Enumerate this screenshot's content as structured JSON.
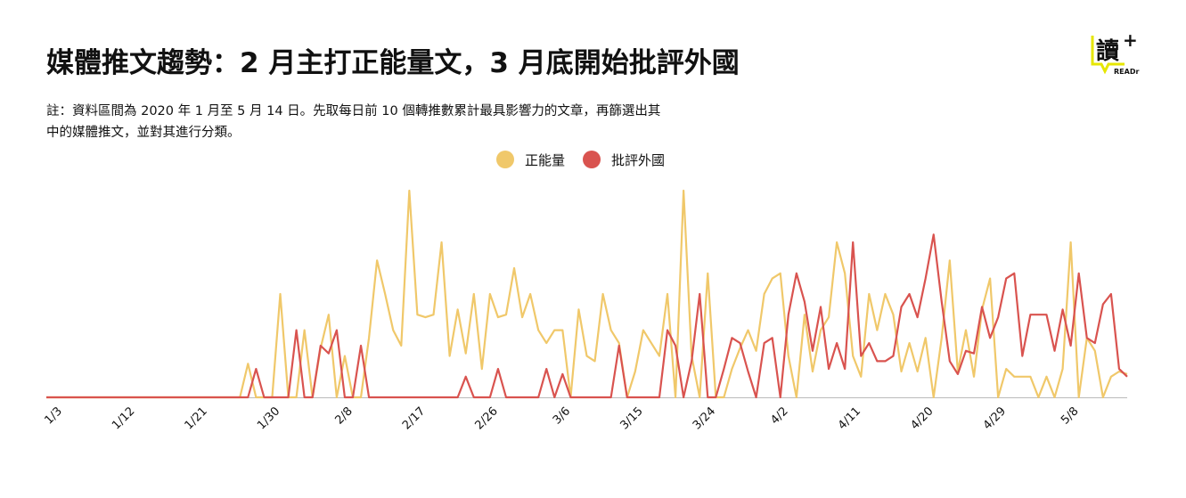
{
  "chart_data": {
    "type": "line",
    "title": "媒體推文趨勢：2 月主打正能量文，3 月底開始批評外國",
    "subtitle": [
      "註：資料區間為 2020 年 1 月至 5 月 14 日。先取每日前 10 個轉推數累計最具影響力的文章，再篩選出其",
      "中的媒體推文，並對其進行分類。"
    ],
    "logo": {
      "mark": "讀",
      "plus": "+",
      "name": "READr"
    },
    "categories": [
      null,
      null,
      "1/3",
      null,
      null,
      null,
      null,
      null,
      null,
      null,
      null,
      "1/12",
      null,
      null,
      null,
      null,
      null,
      null,
      null,
      null,
      "1/21",
      null,
      null,
      null,
      null,
      null,
      null,
      null,
      null,
      "1/30",
      null,
      null,
      null,
      null,
      null,
      null,
      null,
      null,
      "2/8",
      null,
      null,
      null,
      null,
      null,
      null,
      null,
      null,
      "2/17",
      null,
      null,
      null,
      null,
      null,
      null,
      null,
      null,
      "2/26",
      null,
      null,
      null,
      null,
      null,
      null,
      null,
      null,
      "3/6",
      null,
      null,
      null,
      null,
      null,
      null,
      null,
      null,
      "3/15",
      null,
      null,
      null,
      null,
      null,
      null,
      null,
      null,
      "3/24",
      null,
      null,
      null,
      null,
      null,
      null,
      null,
      null,
      "4/2",
      null,
      null,
      null,
      null,
      null,
      null,
      null,
      null,
      "4/11",
      null,
      null,
      null,
      null,
      null,
      null,
      null,
      null,
      "4/20",
      null,
      null,
      null,
      null,
      null,
      null,
      null,
      null,
      "4/29",
      null,
      null,
      null,
      null,
      null,
      null,
      null,
      null,
      "5/8",
      null,
      null,
      null,
      null,
      null,
      null
    ],
    "series": [
      {
        "name": "正能量",
        "color": "#f0c86a",
        "values": [
          0,
          0,
          0,
          0,
          0,
          0,
          0,
          0,
          0,
          0,
          0,
          0,
          0,
          0,
          0,
          0,
          0,
          0,
          0,
          0,
          0,
          0,
          0,
          0,
          0,
          1.3,
          0,
          0,
          0,
          4,
          0,
          0,
          2.6,
          0,
          1.9,
          3.2,
          0,
          1.6,
          0,
          0,
          2.3,
          5.3,
          4,
          2.6,
          2,
          8,
          3.2,
          3.1,
          3.2,
          6,
          1.6,
          3.4,
          1.7,
          4,
          1.1,
          4,
          3.1,
          3.2,
          5,
          3.1,
          4,
          2.6,
          2.1,
          2.6,
          2.6,
          0,
          3.4,
          1.6,
          1.4,
          4,
          2.6,
          2.1,
          0,
          1,
          2.6,
          2.1,
          1.6,
          4,
          0,
          8,
          1.6,
          0,
          4.8,
          0,
          0,
          1.1,
          1.9,
          2.6,
          1.8,
          4,
          4.6,
          4.8,
          1.6,
          0,
          3.2,
          1,
          2.6,
          3.1,
          6,
          4.8,
          1.6,
          0.8,
          4,
          2.6,
          4,
          3.2,
          1,
          2.1,
          1,
          2.3,
          0,
          2.3,
          5.3,
          1,
          2.6,
          0.8,
          3.4,
          4.6,
          0,
          1.1,
          0.8,
          0.8,
          0.8,
          0,
          0.8,
          0,
          1.1,
          6,
          0,
          2.3,
          1.8,
          0,
          0.8,
          1,
          0.9
        ]
      },
      {
        "name": "批評外國",
        "color": "#d9534f",
        "values": [
          0,
          0,
          0,
          0,
          0,
          0,
          0,
          0,
          0,
          0,
          0,
          0,
          0,
          0,
          0,
          0,
          0,
          0,
          0,
          0,
          0,
          0,
          0,
          0,
          0,
          0,
          1.1,
          0,
          0,
          0,
          0,
          2.6,
          0,
          0,
          2,
          1.7,
          2.6,
          0,
          0,
          2,
          0,
          0,
          0,
          0,
          0,
          0,
          0,
          0,
          0,
          0,
          0,
          0,
          0.8,
          0,
          0,
          0,
          1.1,
          0,
          0,
          0,
          0,
          0,
          1.1,
          0,
          0.9,
          0,
          0,
          0,
          0,
          0,
          0,
          2,
          0,
          0,
          0,
          0,
          0,
          2.6,
          2,
          0,
          1.4,
          4,
          0,
          0,
          1.1,
          2.3,
          2.1,
          1,
          0,
          2.1,
          2.3,
          0,
          3.2,
          4.8,
          3.7,
          1.8,
          3.5,
          1.1,
          2.1,
          1.1,
          6,
          1.6,
          2.1,
          1.4,
          1.4,
          1.6,
          3.5,
          4,
          3.1,
          4.6,
          6.3,
          3.7,
          1.4,
          0.9,
          1.8,
          1.7,
          3.5,
          2.3,
          3.1,
          4.6,
          4.8,
          1.6,
          3.2,
          3.2,
          3.2,
          1.8,
          3.4,
          2,
          4.8,
          2.3,
          2.1,
          3.6,
          4,
          1.1,
          0.8
        ]
      }
    ],
    "ylim": [
      0,
      8
    ],
    "legend": "top"
  }
}
